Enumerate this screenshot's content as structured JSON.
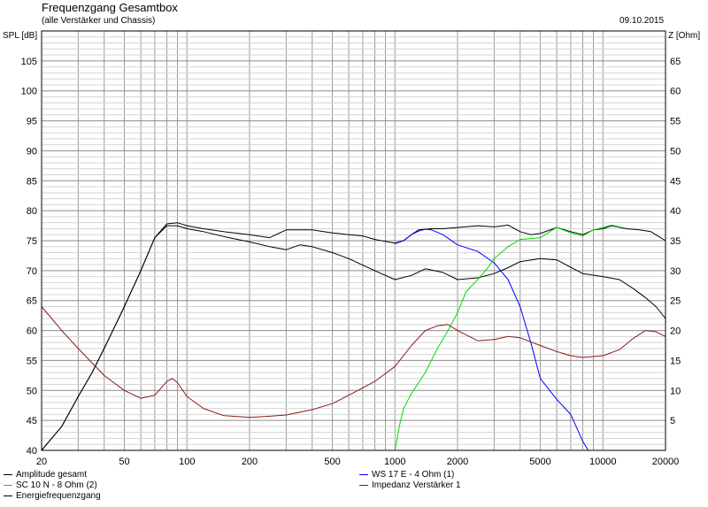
{
  "header": {
    "title": "Frequenzgang Gesamtbox",
    "subtitle": "(alle Verstärker und Chassis)",
    "date": "09.10.2015"
  },
  "chart_data": {
    "type": "line",
    "ylabel_left": "SPL [dB]",
    "ylabel_right": "Z [Ohm]",
    "x_scale": "log",
    "xlim": [
      20,
      20000
    ],
    "ylim_left": [
      40,
      110
    ],
    "ylim_right": [
      0,
      70
    ],
    "x_ticks": [
      20,
      50,
      100,
      200,
      500,
      1000,
      2000,
      5000,
      10000,
      20000
    ],
    "x_tick_labels": [
      "20",
      "50",
      "100",
      "200",
      "500",
      "1000",
      "2000",
      "5000",
      "10000",
      "20000"
    ],
    "y_ticks_left": [
      40,
      45,
      50,
      55,
      60,
      65,
      70,
      75,
      80,
      85,
      90,
      95,
      100,
      105
    ],
    "y_ticks_right": [
      5,
      10,
      15,
      20,
      25,
      30,
      35,
      40,
      45,
      50,
      55,
      60,
      65
    ],
    "grid": true,
    "legend_position": "bottom",
    "series": [
      {
        "name": "Amplitude gesamt",
        "color": "#000000",
        "axis": "left",
        "points": [
          [
            20,
            39
          ],
          [
            25,
            44
          ],
          [
            30,
            49
          ],
          [
            35,
            53
          ],
          [
            40,
            57
          ],
          [
            50,
            64
          ],
          [
            60,
            70
          ],
          [
            70,
            75.5
          ],
          [
            80,
            77.8
          ],
          [
            90,
            78
          ],
          [
            100,
            77.5
          ],
          [
            120,
            77
          ],
          [
            150,
            76.5
          ],
          [
            200,
            76
          ],
          [
            250,
            75.5
          ],
          [
            300,
            76.8
          ],
          [
            400,
            76.8
          ],
          [
            500,
            76.3
          ],
          [
            600,
            76
          ],
          [
            700,
            75.8
          ],
          [
            800,
            75.2
          ],
          [
            1000,
            74.6
          ],
          [
            1100,
            75
          ],
          [
            1200,
            76
          ],
          [
            1300,
            76.8
          ],
          [
            1500,
            77
          ],
          [
            1700,
            77
          ],
          [
            2000,
            77.2
          ],
          [
            2500,
            77.5
          ],
          [
            3000,
            77.3
          ],
          [
            3500,
            77.6
          ],
          [
            4000,
            76.5
          ],
          [
            4500,
            76
          ],
          [
            5000,
            76.2
          ],
          [
            6000,
            77.2
          ],
          [
            7000,
            76.5
          ],
          [
            8000,
            76
          ],
          [
            9000,
            76.8
          ],
          [
            10000,
            77
          ],
          [
            11000,
            77.5
          ],
          [
            13000,
            77
          ],
          [
            15000,
            76.8
          ],
          [
            17000,
            76.5
          ],
          [
            20000,
            75
          ]
        ]
      },
      {
        "name": "Energiefrequenzgang",
        "color": "#000000",
        "axis": "left",
        "points": [
          [
            20,
            39
          ],
          [
            25,
            44
          ],
          [
            30,
            49
          ],
          [
            35,
            53
          ],
          [
            40,
            57
          ],
          [
            50,
            64
          ],
          [
            60,
            70
          ],
          [
            70,
            75.5
          ],
          [
            80,
            77.5
          ],
          [
            90,
            77.5
          ],
          [
            100,
            77
          ],
          [
            120,
            76.5
          ],
          [
            150,
            75.7
          ],
          [
            200,
            74.8
          ],
          [
            250,
            74
          ],
          [
            300,
            73.5
          ],
          [
            350,
            74.3
          ],
          [
            400,
            74
          ],
          [
            500,
            73
          ],
          [
            600,
            72
          ],
          [
            800,
            70
          ],
          [
            1000,
            68.5
          ],
          [
            1200,
            69.2
          ],
          [
            1400,
            70.3
          ],
          [
            1700,
            69.7
          ],
          [
            2000,
            68.5
          ],
          [
            2500,
            68.8
          ],
          [
            3000,
            69.5
          ],
          [
            3500,
            70.5
          ],
          [
            4000,
            71.5
          ],
          [
            5000,
            72
          ],
          [
            6000,
            71.8
          ],
          [
            8000,
            69.5
          ],
          [
            10000,
            69
          ],
          [
            12000,
            68.5
          ],
          [
            14000,
            67
          ],
          [
            16000,
            65.5
          ],
          [
            18000,
            64
          ],
          [
            20000,
            62
          ]
        ]
      },
      {
        "name": "WS 17 E - 4 Ohm  (1)",
        "color": "#0000ff",
        "axis": "left",
        "points": [
          [
            1000,
            74.5
          ],
          [
            1100,
            75
          ],
          [
            1200,
            76
          ],
          [
            1300,
            76.6
          ],
          [
            1400,
            76.9
          ],
          [
            1500,
            76.8
          ],
          [
            1700,
            76
          ],
          [
            2000,
            74.3
          ],
          [
            2500,
            73.2
          ],
          [
            3000,
            71.3
          ],
          [
            3500,
            68.5
          ],
          [
            4000,
            64
          ],
          [
            4500,
            58
          ],
          [
            5000,
            52
          ],
          [
            6000,
            48.5
          ],
          [
            7000,
            46
          ],
          [
            8000,
            41.5
          ],
          [
            8500,
            40
          ]
        ]
      },
      {
        "name": "SC 10 N - 8 Ohm (2)",
        "color": "#00dd00",
        "axis": "left",
        "points": [
          [
            20,
            40
          ],
          [
            1000,
            40
          ],
          [
            1050,
            44
          ],
          [
            1100,
            47
          ],
          [
            1200,
            49.5
          ],
          [
            1400,
            53
          ],
          [
            1600,
            57
          ],
          [
            1800,
            60
          ],
          [
            2000,
            63
          ],
          [
            2200,
            66.5
          ],
          [
            2500,
            68.5
          ],
          [
            2800,
            70.5
          ],
          [
            3000,
            72
          ],
          [
            3500,
            74
          ],
          [
            4000,
            75.2
          ],
          [
            5000,
            75.5
          ],
          [
            6000,
            77.2
          ],
          [
            7000,
            76.3
          ],
          [
            8000,
            75.8
          ],
          [
            9000,
            76.8
          ],
          [
            10000,
            77.2
          ],
          [
            11000,
            77.6
          ],
          [
            12000,
            77.3
          ]
        ]
      },
      {
        "name": "Impedanz Verstärker 1",
        "color": "#8b1a1a",
        "axis": "right",
        "points": [
          [
            20,
            24
          ],
          [
            25,
            20
          ],
          [
            30,
            17
          ],
          [
            40,
            12.5
          ],
          [
            50,
            10
          ],
          [
            60,
            8.7
          ],
          [
            70,
            9.2
          ],
          [
            80,
            11.5
          ],
          [
            85,
            12
          ],
          [
            90,
            11.3
          ],
          [
            100,
            9
          ],
          [
            120,
            7
          ],
          [
            150,
            5.8
          ],
          [
            200,
            5.5
          ],
          [
            250,
            5.7
          ],
          [
            300,
            5.9
          ],
          [
            400,
            6.8
          ],
          [
            500,
            7.8
          ],
          [
            600,
            9.2
          ],
          [
            800,
            11.5
          ],
          [
            1000,
            14
          ],
          [
            1200,
            17.5
          ],
          [
            1400,
            20
          ],
          [
            1600,
            20.8
          ],
          [
            1800,
            21
          ],
          [
            2000,
            20
          ],
          [
            2500,
            18.3
          ],
          [
            3000,
            18.5
          ],
          [
            3500,
            19
          ],
          [
            4000,
            18.8
          ],
          [
            5000,
            17.5
          ],
          [
            6000,
            16.5
          ],
          [
            7000,
            15.8
          ],
          [
            8000,
            15.5
          ],
          [
            10000,
            15.8
          ],
          [
            12000,
            16.8
          ],
          [
            14000,
            18.7
          ],
          [
            16000,
            20
          ],
          [
            18000,
            19.8
          ],
          [
            20000,
            19
          ]
        ]
      }
    ]
  }
}
